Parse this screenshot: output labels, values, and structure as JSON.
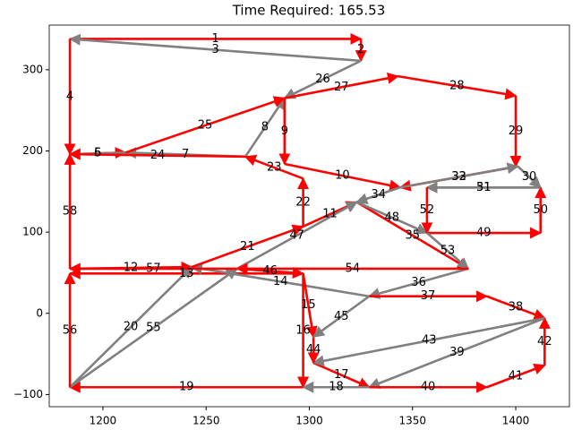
{
  "chart_data": {
    "type": "arrow-route",
    "title": "Time Required: 165.53",
    "xlim": [
      1174,
      1426
    ],
    "ylim": [
      -115,
      355
    ],
    "xticks": [
      1200,
      1250,
      1300,
      1350,
      1400
    ],
    "yticks": [
      {
        "value": -100,
        "label": "−100"
      },
      0,
      100,
      200,
      300
    ],
    "segments": [
      {
        "label": "1",
        "x": [
          1184,
          1325
        ],
        "y": [
          338,
          338
        ],
        "color": "#ff0000"
      },
      {
        "label": "2",
        "x": [
          1325,
          1325
        ],
        "y": [
          338,
          311
        ],
        "color": "#ff0000"
      },
      {
        "label": "3",
        "x": [
          1325,
          1184
        ],
        "y": [
          311,
          338
        ],
        "color": "#808080"
      },
      {
        "label": "4",
        "x": [
          1184,
          1184
        ],
        "y": [
          338,
          196
        ],
        "color": "#ff0000"
      },
      {
        "label": "5",
        "x": [
          1184,
          1211
        ],
        "y": [
          196,
          198
        ],
        "color": "#ff0000"
      },
      {
        "label": "6",
        "x": [
          1211,
          1184
        ],
        "y": [
          198,
          196
        ],
        "color": "#808080"
      },
      {
        "label": "7",
        "x": [
          1269,
          1211
        ],
        "y": [
          193,
          198
        ],
        "color": "#808080"
      },
      {
        "label": "8",
        "x": [
          1269,
          1288
        ],
        "y": [
          193,
          265
        ],
        "color": "#808080"
      },
      {
        "label": "9",
        "x": [
          1288,
          1288
        ],
        "y": [
          265,
          184
        ],
        "color": "#ff0000"
      },
      {
        "label": "10",
        "x": [
          1288,
          1344
        ],
        "y": [
          184,
          155
        ],
        "color": "#ff0000"
      },
      {
        "label": "11",
        "x": [
          1297,
          1323
        ],
        "y": [
          107,
          137
        ],
        "color": "#ff0000"
      },
      {
        "label": "12",
        "x": [
          1184,
          1243
        ],
        "y": [
          55,
          57
        ],
        "color": "#ff0000"
      },
      {
        "label": "13",
        "x": [
          1297,
          1184
        ],
        "y": [
          49,
          49
        ],
        "color": "#ff0000"
      },
      {
        "label": "14",
        "x": [
          1329,
          1243
        ],
        "y": [
          21,
          57
        ],
        "color": "#808080"
      },
      {
        "label": "15",
        "x": [
          1297,
          1302
        ],
        "y": [
          49,
          -29
        ],
        "color": "#ff0000"
      },
      {
        "label": "16",
        "x": [
          1297,
          1297
        ],
        "y": [
          49,
          -91
        ],
        "color": "#ff0000"
      },
      {
        "label": "17",
        "x": [
          1302,
          1329
        ],
        "y": [
          -61,
          -91
        ],
        "color": "#ff0000"
      },
      {
        "label": "18",
        "x": [
          1329,
          1297
        ],
        "y": [
          -91,
          -91
        ],
        "color": "#808080"
      },
      {
        "label": "19",
        "x": [
          1297,
          1184
        ],
        "y": [
          -91,
          -91
        ],
        "color": "#ff0000"
      },
      {
        "label": "20",
        "x": [
          1184,
          1243
        ],
        "y": [
          -91,
          57
        ],
        "color": "#808080"
      },
      {
        "label": "21",
        "x": [
          1243,
          1297
        ],
        "y": [
          57,
          107
        ],
        "color": "#ff0000"
      },
      {
        "label": "22",
        "x": [
          1297,
          1297
        ],
        "y": [
          107,
          166
        ],
        "color": "#ff0000"
      },
      {
        "label": "23",
        "x": [
          1297,
          1269
        ],
        "y": [
          166,
          193
        ],
        "color": "#ff0000"
      },
      {
        "label": "24",
        "x": [
          1269,
          1184
        ],
        "y": [
          193,
          196
        ],
        "color": "#ff0000"
      },
      {
        "label": "25",
        "x": [
          1211,
          1288
        ],
        "y": [
          198,
          265
        ],
        "color": "#ff0000"
      },
      {
        "label": "26",
        "x": [
          1325,
          1288
        ],
        "y": [
          311,
          265
        ],
        "color": "#808080"
      },
      {
        "label": "27",
        "x": [
          1288,
          1343
        ],
        "y": [
          265,
          292
        ],
        "color": "#ff0000"
      },
      {
        "label": "28",
        "x": [
          1343,
          1400
        ],
        "y": [
          292,
          268
        ],
        "color": "#ff0000"
      },
      {
        "label": "29",
        "x": [
          1400,
          1400
        ],
        "y": [
          268,
          181
        ],
        "color": "#ff0000"
      },
      {
        "label": "30",
        "x": [
          1401,
          1412
        ],
        "y": [
          181,
          155
        ],
        "color": "#808080"
      },
      {
        "label": "31",
        "x": [
          1412,
          1357
        ],
        "y": [
          155,
          155
        ],
        "color": "#808080"
      },
      {
        "label": "32",
        "x": [
          1401,
          1344
        ],
        "y": [
          181,
          155
        ],
        "color": "#ff0000"
      },
      {
        "label": "33",
        "x": [
          1344,
          1401
        ],
        "y": [
          155,
          181
        ],
        "color": "#808080"
      },
      {
        "label": "34",
        "x": [
          1344,
          1323
        ],
        "y": [
          155,
          137
        ],
        "color": "#808080"
      },
      {
        "label": "35",
        "x": [
          1323,
          1377
        ],
        "y": [
          137,
          55
        ],
        "color": "#ff0000"
      },
      {
        "label": "36",
        "x": [
          1377,
          1329
        ],
        "y": [
          55,
          21
        ],
        "color": "#808080"
      },
      {
        "label": "37",
        "x": [
          1329,
          1386
        ],
        "y": [
          21,
          21
        ],
        "color": "#ff0000"
      },
      {
        "label": "38",
        "x": [
          1386,
          1414
        ],
        "y": [
          21,
          -6
        ],
        "color": "#ff0000"
      },
      {
        "label": "39",
        "x": [
          1414,
          1329
        ],
        "y": [
          -6,
          -91
        ],
        "color": "#808080"
      },
      {
        "label": "40",
        "x": [
          1329,
          1386
        ],
        "y": [
          -91,
          -91
        ],
        "color": "#ff0000"
      },
      {
        "label": "41",
        "x": [
          1386,
          1414
        ],
        "y": [
          -91,
          -64
        ],
        "color": "#ff0000"
      },
      {
        "label": "42",
        "x": [
          1414,
          1414
        ],
        "y": [
          -64,
          -6
        ],
        "color": "#ff0000"
      },
      {
        "label": "43",
        "x": [
          1414,
          1302
        ],
        "y": [
          -6,
          -61
        ],
        "color": "#808080"
      },
      {
        "label": "44",
        "x": [
          1302,
          1302
        ],
        "y": [
          -29,
          -61
        ],
        "color": "#ff0000"
      },
      {
        "label": "45",
        "x": [
          1329,
          1302
        ],
        "y": [
          21,
          -29
        ],
        "color": "#808080"
      },
      {
        "label": "46",
        "x": [
          1265,
          1297
        ],
        "y": [
          55,
          49
        ],
        "color": "#ff0000"
      },
      {
        "label": "47",
        "x": [
          1265,
          1323
        ],
        "y": [
          55,
          137
        ],
        "color": "#808080"
      },
      {
        "label": "48",
        "x": [
          1323,
          1357
        ],
        "y": [
          137,
          99
        ],
        "color": "#808080"
      },
      {
        "label": "49",
        "x": [
          1357,
          1412
        ],
        "y": [
          99,
          99
        ],
        "color": "#ff0000"
      },
      {
        "label": "50",
        "x": [
          1412,
          1412
        ],
        "y": [
          99,
          155
        ],
        "color": "#ff0000"
      },
      {
        "label": "51",
        "x": [
          1412,
          1357
        ],
        "y": [
          155,
          155
        ],
        "color": "#808080"
      },
      {
        "label": "52",
        "x": [
          1357,
          1357
        ],
        "y": [
          155,
          99
        ],
        "color": "#ff0000"
      },
      {
        "label": "53",
        "x": [
          1357,
          1377
        ],
        "y": [
          99,
          55
        ],
        "color": "#808080"
      },
      {
        "label": "54",
        "x": [
          1377,
          1265
        ],
        "y": [
          55,
          55
        ],
        "color": "#ff0000"
      },
      {
        "label": "55",
        "x": [
          1184,
          1265
        ],
        "y": [
          -91,
          55
        ],
        "color": "#808080"
      },
      {
        "label": "56",
        "x": [
          1184,
          1184
        ],
        "y": [
          -91,
          49
        ],
        "color": "#ff0000"
      },
      {
        "label": "57",
        "x": [
          1265,
          1184
        ],
        "y": [
          55,
          55
        ],
        "color": "#ff0000"
      },
      {
        "label": "58",
        "x": [
          1184,
          1184
        ],
        "y": [
          55,
          196
        ],
        "color": "#ff0000"
      }
    ]
  }
}
